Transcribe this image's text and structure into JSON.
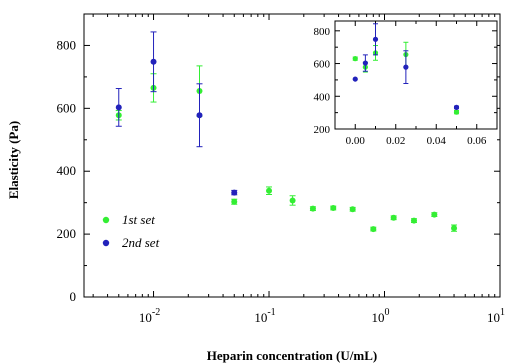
{
  "chart_data": [
    {
      "type": "scatter",
      "xlabel": "Heparin concentration (U/mL)",
      "ylabel": "Elasticity (Pa)",
      "xscale": "log",
      "xlim": [
        0.0025,
        10
      ],
      "ylim": [
        0,
        900
      ],
      "yticks": [
        0,
        200,
        400,
        600,
        800
      ],
      "xticks": [
        {
          "value": 0.01,
          "base": "10",
          "exp": "-2"
        },
        {
          "value": 0.1,
          "base": "10",
          "exp": "-1"
        },
        {
          "value": 1,
          "base": "10",
          "exp": "0"
        },
        {
          "value": 10,
          "base": "10",
          "exp": "1"
        }
      ],
      "grid": false,
      "legend_position": "lower-left",
      "series": [
        {
          "name": "1st set",
          "color": "#33ee33",
          "points": [
            {
              "x": 0.005,
              "y": 578,
              "err": 15
            },
            {
              "x": 0.01,
              "y": 665,
              "err": 45
            },
            {
              "x": 0.025,
              "y": 655,
              "err": 80
            },
            {
              "x": 0.05,
              "y": 303,
              "err": 8
            },
            {
              "x": 0.1,
              "y": 338,
              "err": 12
            },
            {
              "x": 0.16,
              "y": 307,
              "err": 15
            },
            {
              "x": 0.24,
              "y": 281,
              "err": 6
            },
            {
              "x": 0.36,
              "y": 283,
              "err": 6
            },
            {
              "x": 0.53,
              "y": 279,
              "err": 6
            },
            {
              "x": 0.8,
              "y": 216,
              "err": 6
            },
            {
              "x": 1.2,
              "y": 252,
              "err": 6
            },
            {
              "x": 1.8,
              "y": 243,
              "err": 6
            },
            {
              "x": 2.7,
              "y": 262,
              "err": 6
            },
            {
              "x": 4.0,
              "y": 219,
              "err": 10
            }
          ]
        },
        {
          "name": "2nd set",
          "color": "#2222bb",
          "points": [
            {
              "x": 0.005,
              "y": 603,
              "err": 60
            },
            {
              "x": 0.01,
              "y": 748,
              "err": 95
            },
            {
              "x": 0.025,
              "y": 578,
              "err": 100
            },
            {
              "x": 0.05,
              "y": 332,
              "err": 7
            }
          ]
        }
      ]
    },
    {
      "type": "scatter",
      "xlabel": "",
      "ylabel": "",
      "xlim": [
        -0.01,
        0.07
      ],
      "ylim": [
        200,
        860
      ],
      "yticks": [
        200,
        300,
        400,
        500,
        600,
        700,
        800
      ],
      "xticks": [
        {
          "value": 0.0,
          "label": "0.00"
        },
        {
          "value": 0.02,
          "label": "0.02"
        },
        {
          "value": 0.04,
          "label": "0.04"
        },
        {
          "value": 0.06,
          "label": "0.06"
        }
      ],
      "ytick_labels": [
        {
          "value": 200,
          "label": "200"
        },
        {
          "value": 400,
          "label": "400"
        },
        {
          "value": 600,
          "label": "600"
        },
        {
          "value": 800,
          "label": "800"
        }
      ],
      "grid": false,
      "position": "inset top-right",
      "series": [
        {
          "name": "",
          "color": "#33ee33",
          "points": [
            {
              "x": 0.0,
              "y": 630,
              "err": 10
            },
            {
              "x": 0.005,
              "y": 578,
              "err": 30
            },
            {
              "x": 0.01,
              "y": 665,
              "err": 45
            },
            {
              "x": 0.025,
              "y": 655,
              "err": 75
            },
            {
              "x": 0.05,
              "y": 303,
              "err": 10
            }
          ]
        },
        {
          "name": "",
          "color": "#2222bb",
          "points": [
            {
              "x": 0.0,
              "y": 505,
              "err": 0
            },
            {
              "x": 0.005,
              "y": 603,
              "err": 50
            },
            {
              "x": 0.01,
              "y": 748,
              "err": 95
            },
            {
              "x": 0.025,
              "y": 578,
              "err": 100
            },
            {
              "x": 0.05,
              "y": 332,
              "err": 8
            }
          ]
        }
      ]
    }
  ]
}
